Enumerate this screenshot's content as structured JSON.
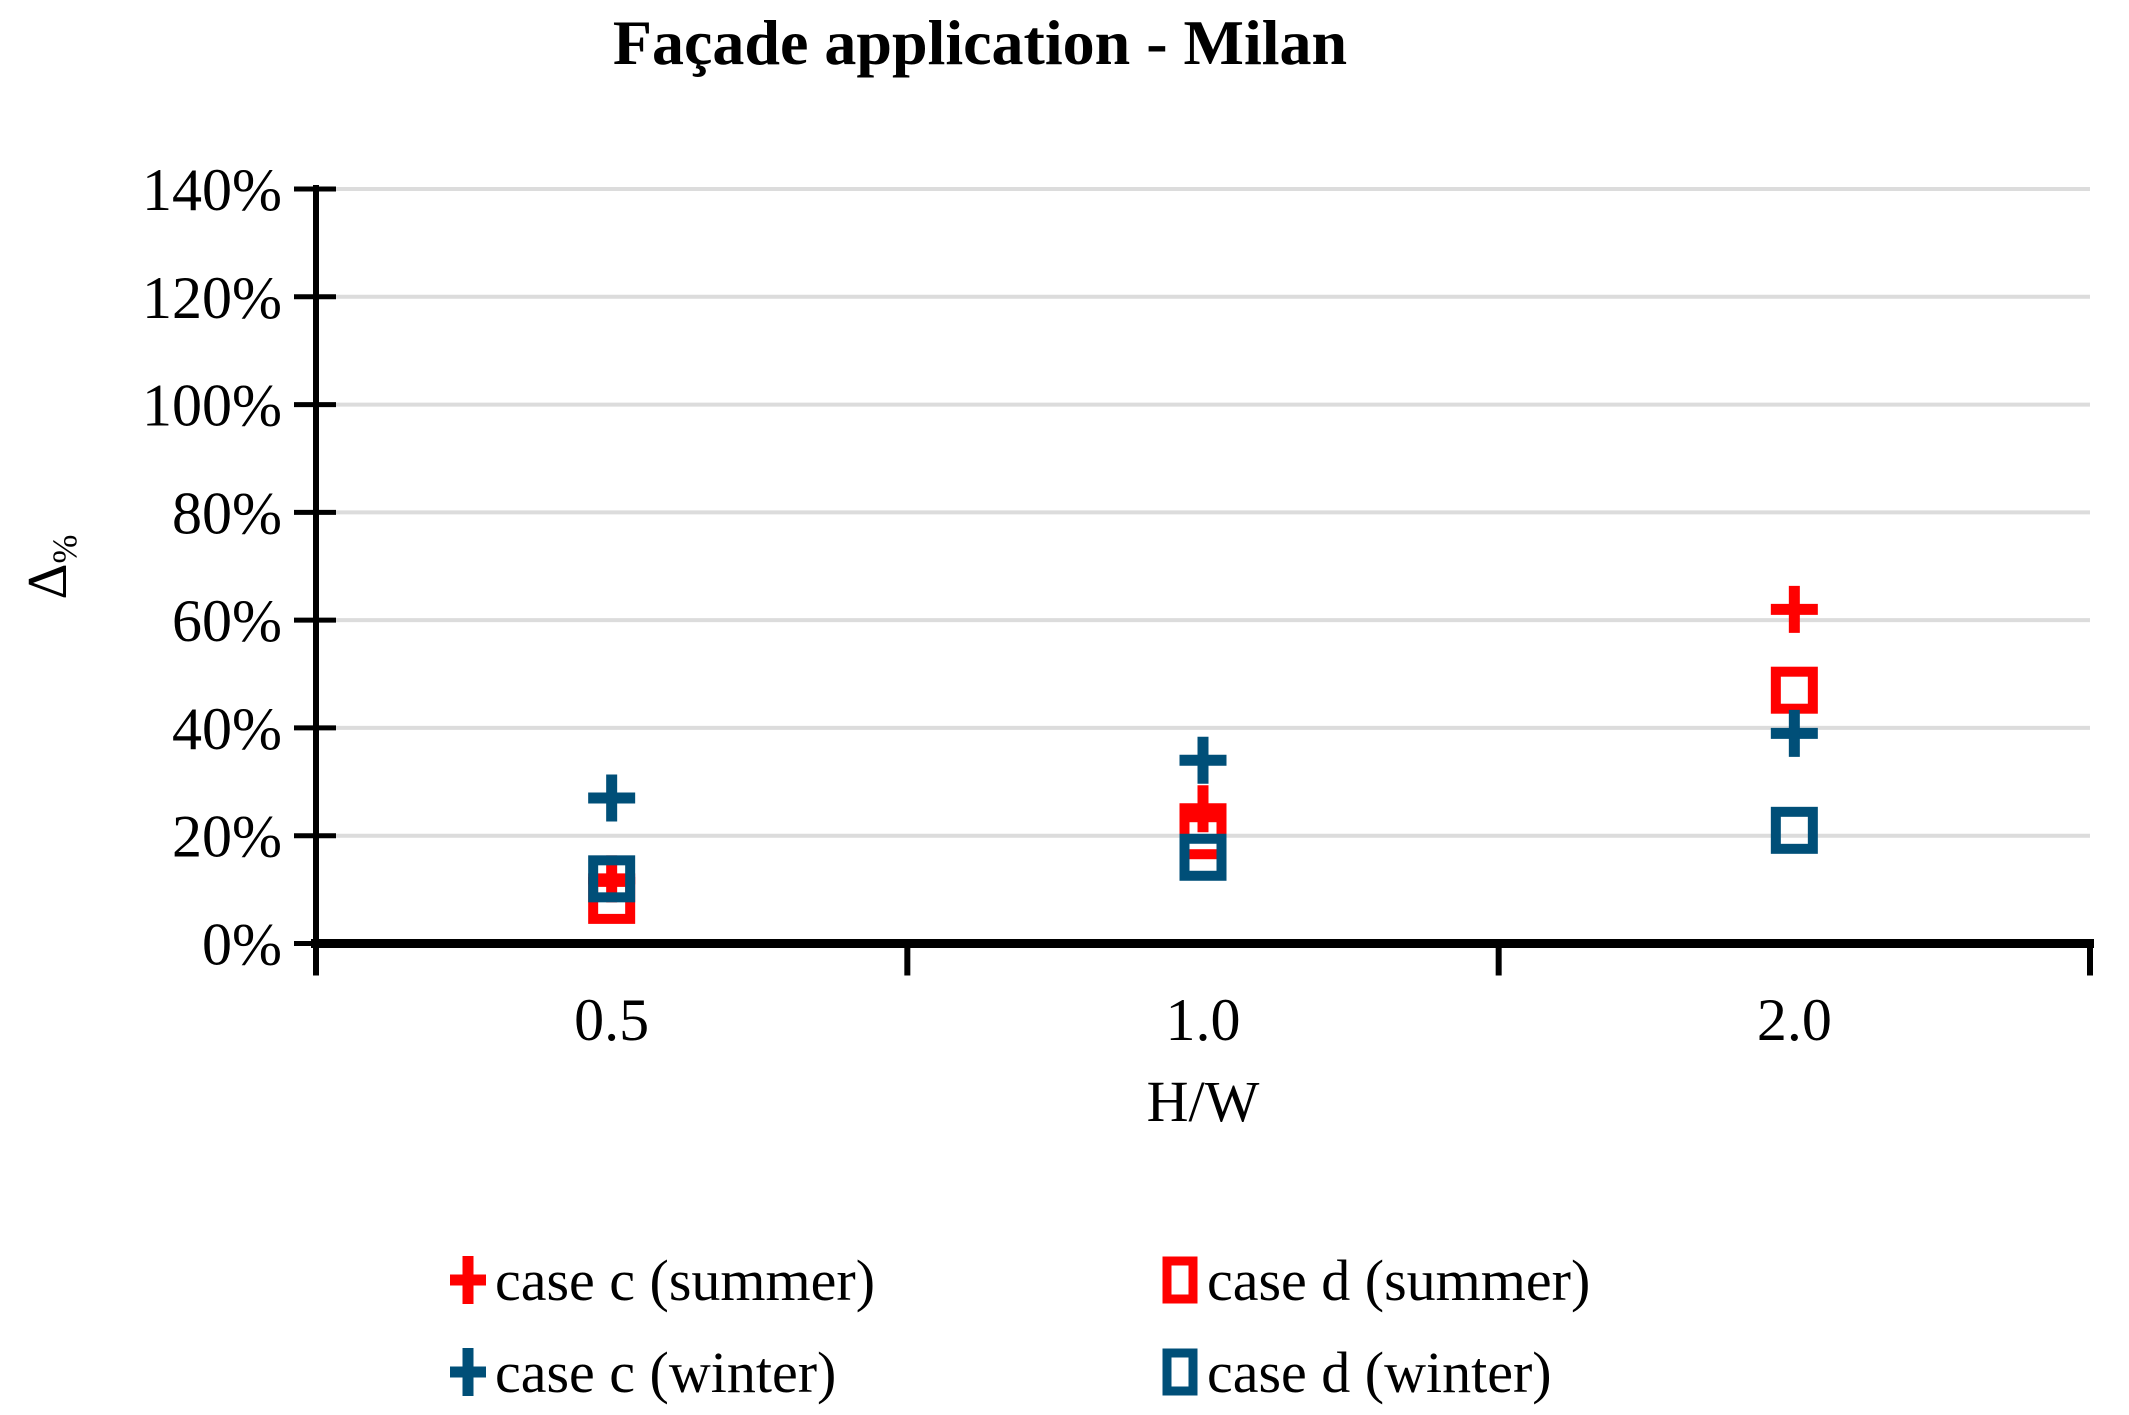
{
  "chart_data": {
    "type": "scatter",
    "title": "Façade application - Milan",
    "xlabel": "H/W",
    "ylabel_main": "Δ",
    "ylabel_sub": "%",
    "categories": [
      "0.5",
      "1.0",
      "2.0"
    ],
    "y_tick_labels": [
      "0%",
      "20%",
      "40%",
      "60%",
      "80%",
      "100%",
      "120%",
      "140%"
    ],
    "ylim": [
      0,
      140
    ],
    "y_step": 20,
    "grid": true,
    "legend_position": "bottom",
    "series": [
      {
        "name": "case c (summer)",
        "marker": "plus",
        "color": "#FF0000",
        "values": [
          12,
          25,
          62
        ]
      },
      {
        "name": "case d (summer)",
        "marker": "square",
        "color": "#FF0000",
        "values": [
          8,
          20,
          47
        ]
      },
      {
        "name": "case c (winter)",
        "marker": "plus",
        "color": "#004F78",
        "values": [
          27,
          34,
          39
        ]
      },
      {
        "name": "case d (winter)",
        "marker": "square",
        "color": "#004F78",
        "values": [
          12,
          16,
          21
        ]
      }
    ],
    "colors": {
      "grid": "#DCDCDC",
      "axis": "#000000",
      "text": "#000000"
    }
  }
}
